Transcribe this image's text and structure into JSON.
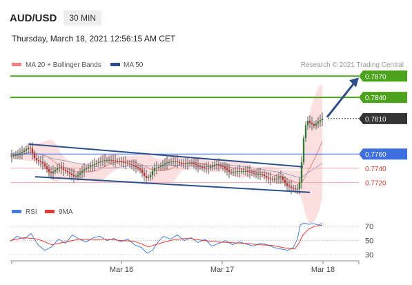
{
  "header": {
    "symbol": "AUD/USD",
    "timeframe": "30 MIN",
    "datetime": "Thursday, March 18, 2021 12:56:15 AM CET"
  },
  "legend": {
    "ma20_label": "MA 20 + Bollinger Bands",
    "ma50_label": "MA 50",
    "credit": "Research © 2021 Trading Central",
    "rsi_label": "RSI",
    "rsi_ma_label": "9MA"
  },
  "colors": {
    "ma20": "#f08080",
    "ma50": "#2b4f8a",
    "rsi": "#4a7fe0",
    "rsi_ma": "#e53935",
    "resistance": "#4aa31a",
    "pivot": "#3d6fe0",
    "support": "#e53935",
    "last": "#333333",
    "candle_up": "#2e7d32",
    "candle_down": "#c62828"
  },
  "chart_data": [
    {
      "type": "candlestick",
      "title": "AUD/USD 30 MIN",
      "x_ticks": [
        "Mar 16",
        "Mar 17",
        "Mar 18"
      ],
      "ylim": [
        0.7695,
        0.788
      ],
      "levels": [
        {
          "price": 0.787,
          "label": "0.7870",
          "kind": "resistance"
        },
        {
          "price": 0.784,
          "label": "0.7840",
          "kind": "resistance"
        },
        {
          "price": 0.781,
          "label": "0.7810",
          "kind": "last"
        },
        {
          "price": 0.776,
          "label": "0.7760",
          "kind": "pivot"
        },
        {
          "price": 0.774,
          "label": "0.7740",
          "kind": "support"
        },
        {
          "price": 0.772,
          "label": "0.7720",
          "kind": "support"
        }
      ],
      "price_path": [
        [
          0,
          0.7757
        ],
        [
          12,
          0.776
        ],
        [
          20,
          0.7765
        ],
        [
          28,
          0.777
        ],
        [
          36,
          0.7752
        ],
        [
          46,
          0.7748
        ],
        [
          58,
          0.7732
        ],
        [
          70,
          0.7742
        ],
        [
          82,
          0.7735
        ],
        [
          94,
          0.7727
        ],
        [
          106,
          0.7738
        ],
        [
          118,
          0.7744
        ],
        [
          130,
          0.775
        ],
        [
          142,
          0.7752
        ],
        [
          154,
          0.775
        ],
        [
          166,
          0.7748
        ],
        [
          178,
          0.7744
        ],
        [
          188,
          0.7738
        ],
        [
          196,
          0.7726
        ],
        [
          202,
          0.7728
        ],
        [
          208,
          0.774
        ],
        [
          216,
          0.7742
        ],
        [
          226,
          0.7748
        ],
        [
          238,
          0.775
        ],
        [
          250,
          0.7746
        ],
        [
          262,
          0.7748
        ],
        [
          274,
          0.7742
        ],
        [
          286,
          0.774
        ],
        [
          298,
          0.7746
        ],
        [
          308,
          0.7742
        ],
        [
          318,
          0.7734
        ],
        [
          330,
          0.7736
        ],
        [
          342,
          0.7736
        ],
        [
          354,
          0.7732
        ],
        [
          364,
          0.7732
        ],
        [
          372,
          0.7726
        ],
        [
          382,
          0.7724
        ],
        [
          392,
          0.7728
        ],
        [
          400,
          0.7716
        ],
        [
          408,
          0.7712
        ],
        [
          414,
          0.771
        ],
        [
          418,
          0.7712
        ],
        [
          421,
          0.7735
        ],
        [
          424,
          0.7775
        ],
        [
          427,
          0.7797
        ],
        [
          430,
          0.7808
        ],
        [
          434,
          0.7804
        ],
        [
          440,
          0.78
        ],
        [
          446,
          0.7806
        ],
        [
          452,
          0.781
        ]
      ],
      "channel": {
        "upper": [
          [
            27,
            0.7774
          ],
          [
            424,
            0.7742
          ]
        ],
        "lower": [
          [
            36,
            0.7728
          ],
          [
            434,
            0.7706
          ]
        ]
      },
      "forecast_arrow": [
        [
          459,
          0.7812
        ],
        [
          505,
          0.7868
        ]
      ]
    },
    {
      "type": "line",
      "title": "RSI",
      "y_ticks": [
        70,
        50,
        30
      ],
      "ylim": [
        25,
        80
      ],
      "series": [
        {
          "name": "RSI",
          "values": [
            [
              0,
              49
            ],
            [
              10,
              56
            ],
            [
              20,
              52
            ],
            [
              30,
              60
            ],
            [
              40,
              44
            ],
            [
              50,
              36
            ],
            [
              60,
              41
            ],
            [
              70,
              52
            ],
            [
              80,
              46
            ],
            [
              90,
              58
            ],
            [
              100,
              52
            ],
            [
              110,
              48
            ],
            [
              120,
              54
            ],
            [
              130,
              56
            ],
            [
              140,
              50
            ],
            [
              150,
              53
            ],
            [
              160,
              48
            ],
            [
              170,
              52
            ],
            [
              180,
              44
            ],
            [
              190,
              40
            ],
            [
              198,
              32
            ],
            [
              206,
              36
            ],
            [
              214,
              48
            ],
            [
              222,
              56
            ],
            [
              232,
              52
            ],
            [
              242,
              58
            ],
            [
              252,
              50
            ],
            [
              262,
              54
            ],
            [
              272,
              47
            ],
            [
              282,
              52
            ],
            [
              292,
              42
            ],
            [
              302,
              46
            ],
            [
              312,
              50
            ],
            [
              322,
              44
            ],
            [
              332,
              48
            ],
            [
              342,
              45
            ],
            [
              352,
              42
            ],
            [
              362,
              46
            ],
            [
              372,
              44
            ],
            [
              382,
              40
            ],
            [
              392,
              38
            ],
            [
              402,
              36
            ],
            [
              410,
              40
            ],
            [
              416,
              52
            ],
            [
              420,
              72
            ],
            [
              426,
              75
            ],
            [
              432,
              73
            ],
            [
              440,
              74
            ],
            [
              446,
              72
            ],
            [
              452,
              74
            ]
          ]
        },
        {
          "name": "9MA",
          "values": [
            [
              0,
              50
            ],
            [
              20,
              54
            ],
            [
              40,
              52
            ],
            [
              60,
              44
            ],
            [
              80,
              48
            ],
            [
              100,
              52
            ],
            [
              120,
              52
            ],
            [
              140,
              52
            ],
            [
              160,
              50
            ],
            [
              180,
              49
            ],
            [
              200,
              41
            ],
            [
              220,
              47
            ],
            [
              240,
              52
            ],
            [
              260,
              53
            ],
            [
              280,
              50
            ],
            [
              300,
              48
            ],
            [
              320,
              47
            ],
            [
              340,
              46
            ],
            [
              360,
              44
            ],
            [
              380,
              43
            ],
            [
              400,
              39
            ],
            [
              412,
              38
            ],
            [
              418,
              46
            ],
            [
              424,
              58
            ],
            [
              432,
              66
            ],
            [
              440,
              70
            ],
            [
              452,
              72
            ]
          ]
        }
      ]
    }
  ]
}
